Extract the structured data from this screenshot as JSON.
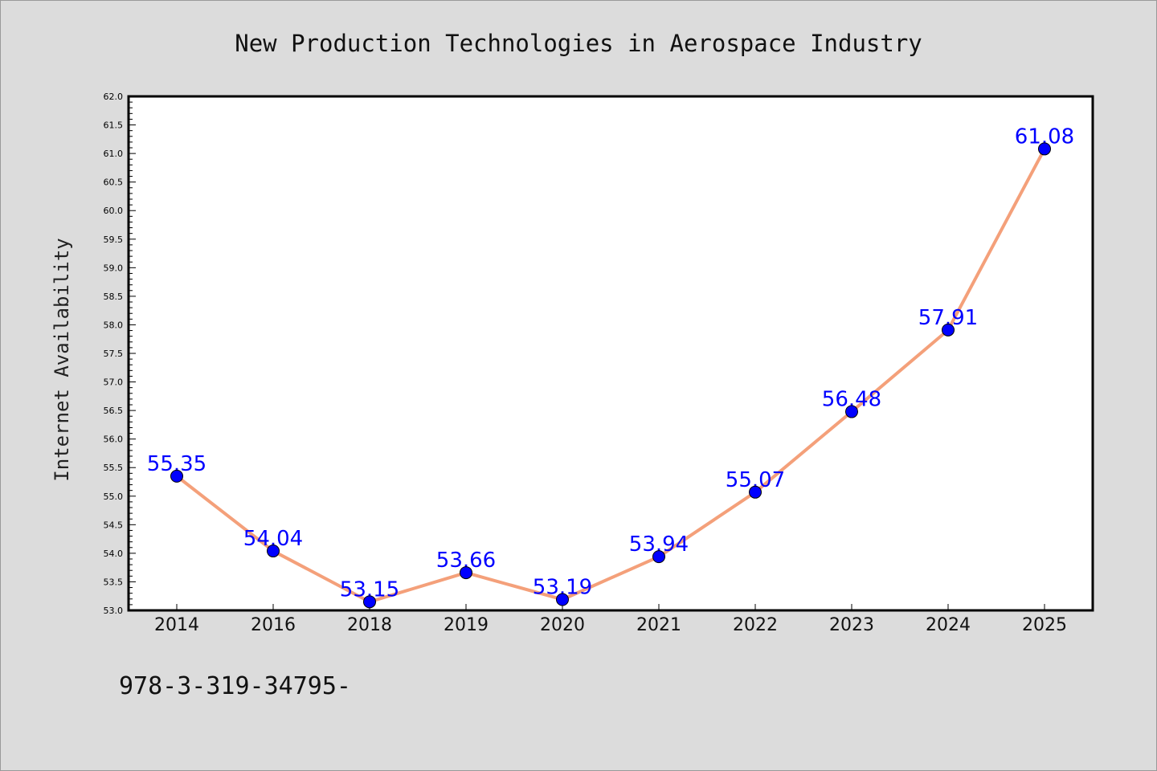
{
  "chart_data": {
    "type": "line",
    "title": "New Production Technologies in Aerospace Industry",
    "xlabel": "",
    "ylabel": "Internet Availability",
    "categories": [
      "2014",
      "2016",
      "2018",
      "2019",
      "2020",
      "2021",
      "2022",
      "2023",
      "2024",
      "2025"
    ],
    "series": [
      {
        "values": [
          55.35,
          54.04,
          53.15,
          53.66,
          53.19,
          53.94,
          55.07,
          56.48,
          57.91,
          61.08
        ],
        "data_labels": [
          "55.35",
          "54.04",
          "53.15",
          "53.66",
          "53.19",
          "53.94",
          "55.07",
          "56.48",
          "57.91",
          "61.08"
        ],
        "line_color": "#f4a07a",
        "marker_color": "#0000ff"
      }
    ],
    "ylim": [
      53.0,
      62.0
    ],
    "yticks": [
      "53.0",
      "53.5",
      "54.0",
      "54.5",
      "55.0",
      "55.5",
      "56.0",
      "56.5",
      "57.0",
      "57.5",
      "58.0",
      "58.5",
      "59.0",
      "59.5",
      "60.0",
      "60.5",
      "61.0",
      "61.5",
      "62.0"
    ],
    "grid": false,
    "legend": "none",
    "footnote": "978-3-319-34795-"
  }
}
